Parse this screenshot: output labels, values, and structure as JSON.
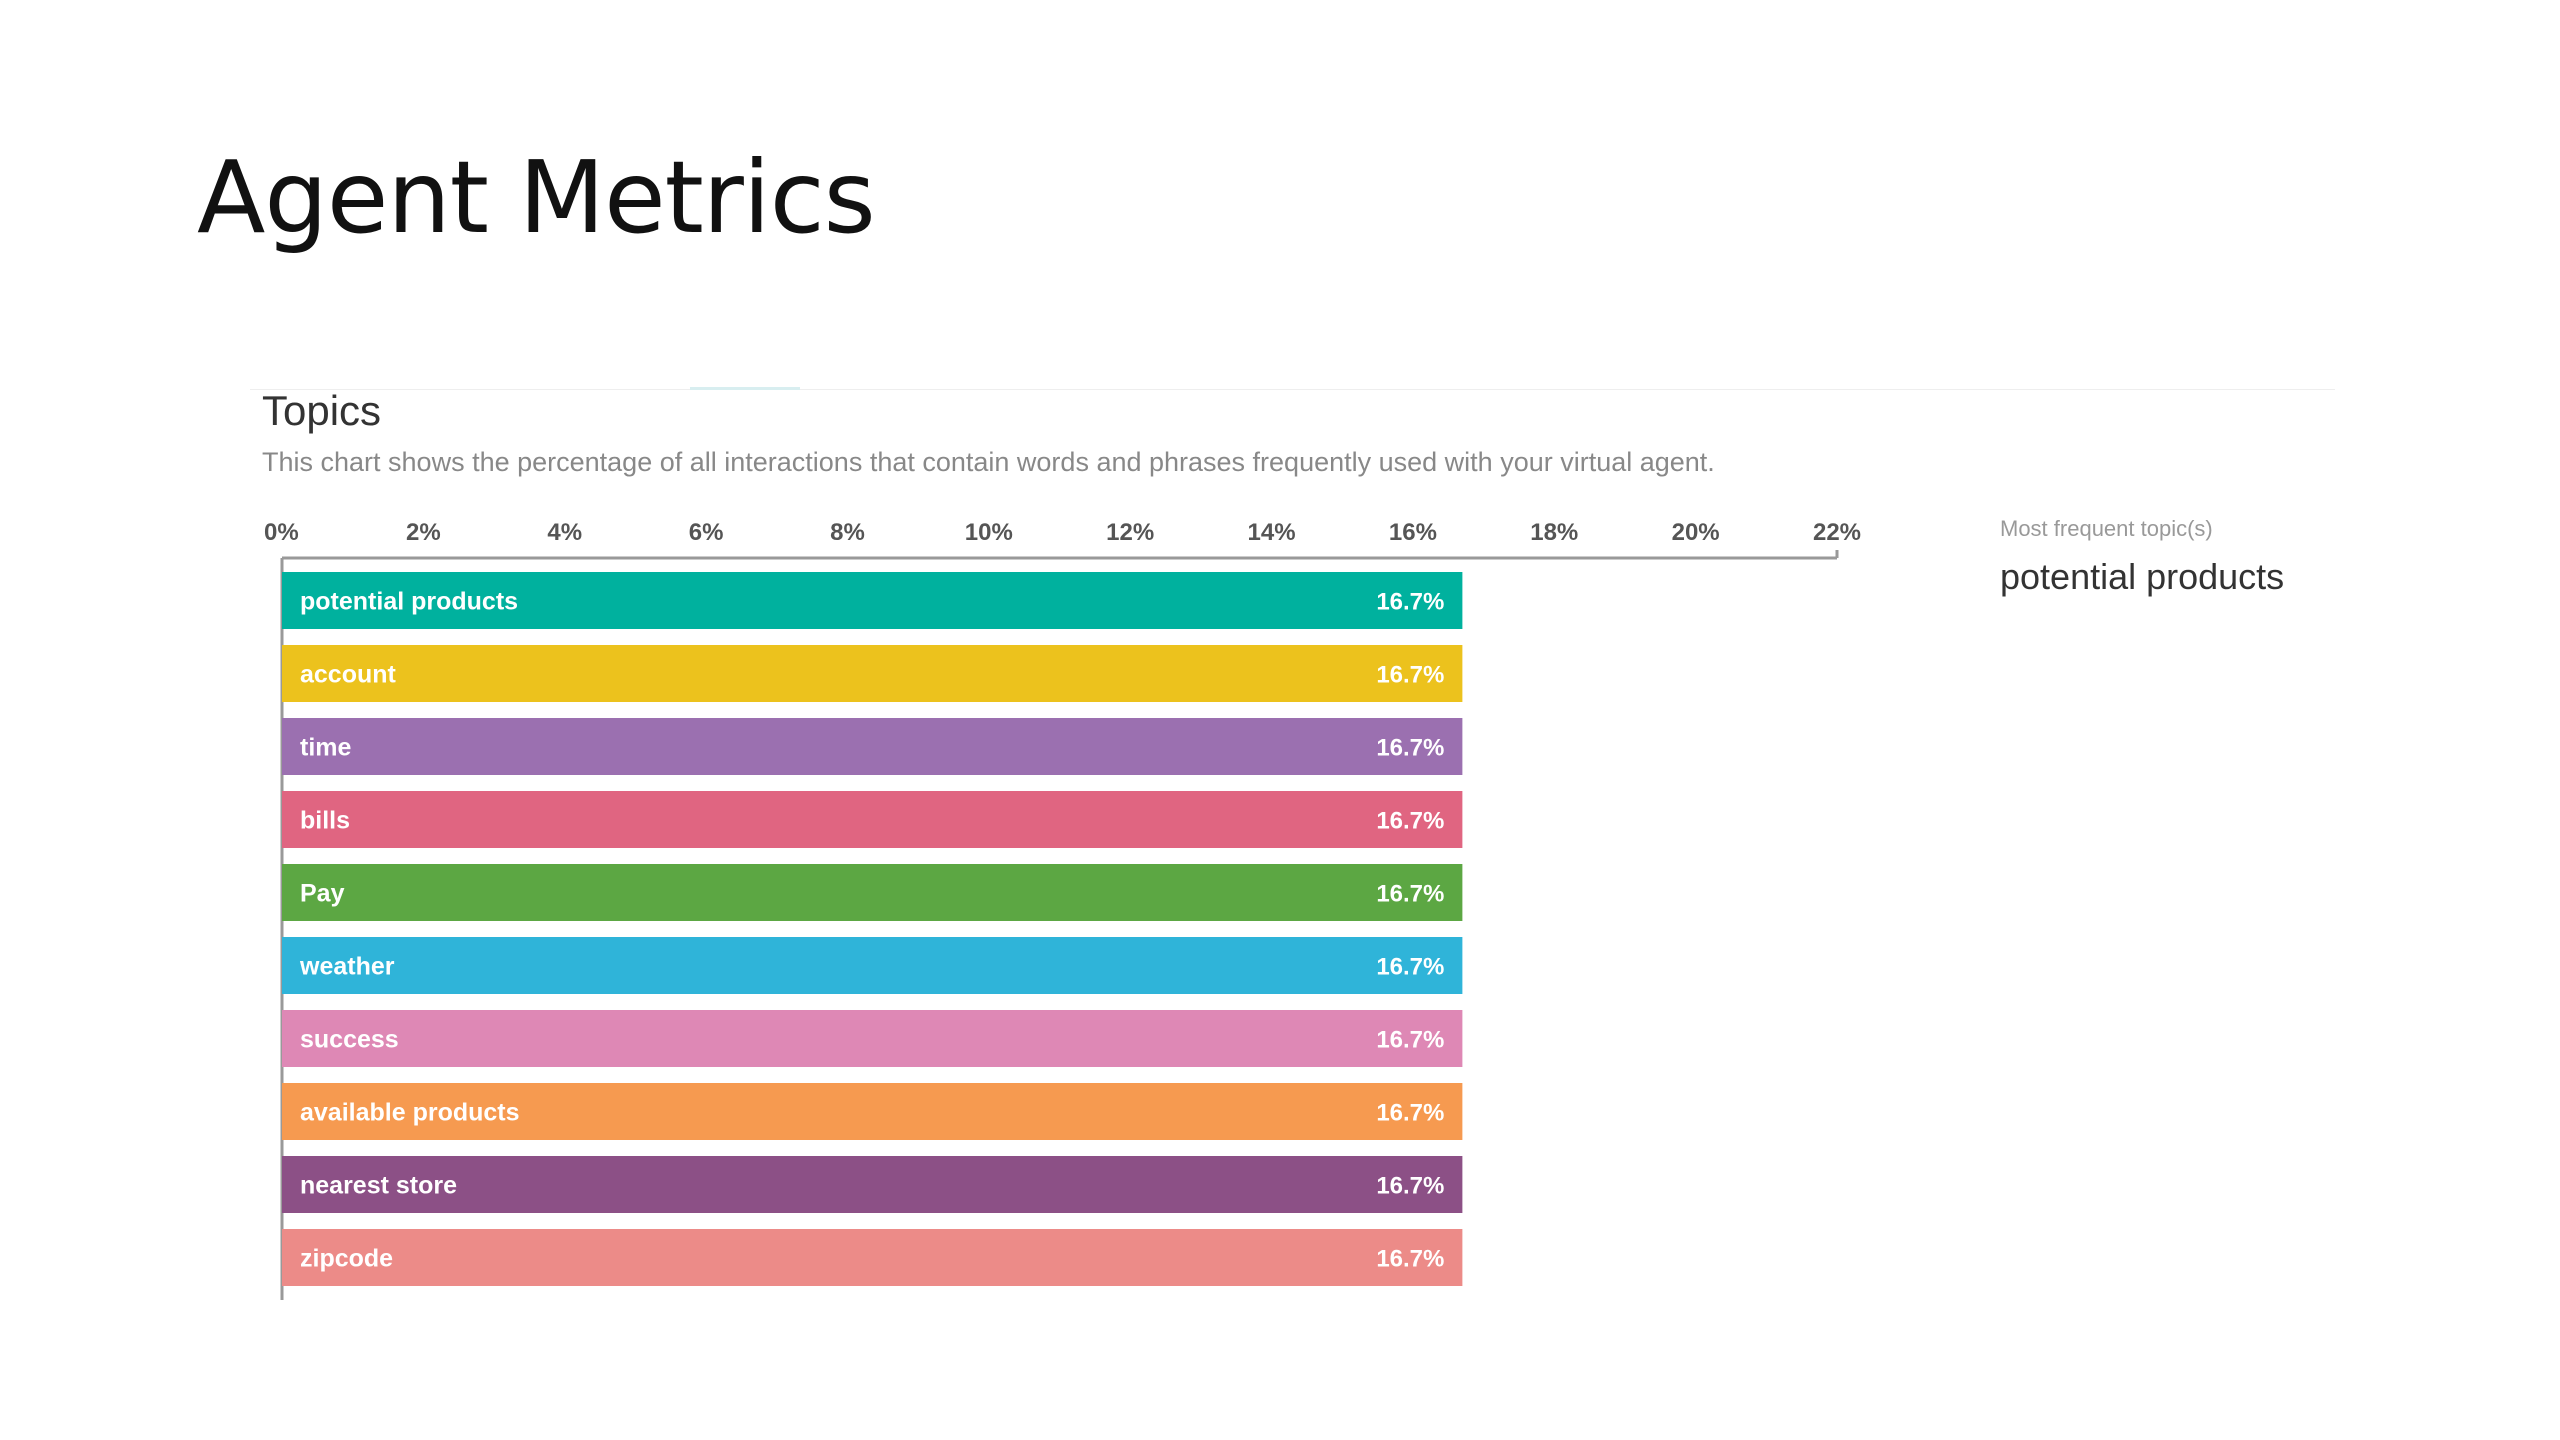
{
  "slide": {
    "title": "Agent Metrics"
  },
  "panel": {
    "heading": "Topics",
    "description": "This chart shows the percentage of all interactions that contain words and phrases frequently used with your virtual agent."
  },
  "summary": {
    "label": "Most frequent topic(s)",
    "value": "potential products"
  },
  "chart_data": {
    "type": "bar",
    "orientation": "horizontal",
    "categories": [
      "potential products",
      "account",
      "time",
      "bills",
      "Pay",
      "weather",
      "success",
      "available products",
      "nearest store",
      "zipcode"
    ],
    "values": [
      16.7,
      16.7,
      16.7,
      16.7,
      16.7,
      16.7,
      16.7,
      16.7,
      16.7,
      16.7
    ],
    "value_labels": [
      "16.7%",
      "16.7%",
      "16.7%",
      "16.7%",
      "16.7%",
      "16.7%",
      "16.7%",
      "16.7%",
      "16.7%",
      "16.7%"
    ],
    "colors": [
      "#00b19e",
      "#ecc21d",
      "#9b70b0",
      "#e06581",
      "#5ca743",
      "#2fb4d9",
      "#de88b5",
      "#f69a50",
      "#8c5086",
      "#ec8b88"
    ],
    "xlim": [
      0,
      22
    ],
    "xticks": [
      0,
      2,
      4,
      6,
      8,
      10,
      12,
      14,
      16,
      18,
      20,
      22
    ],
    "xtick_labels": [
      "0%",
      "2%",
      "4%",
      "6%",
      "8%",
      "10%",
      "12%",
      "14%",
      "16%",
      "18%",
      "20%",
      "22%"
    ],
    "axis_position": "top",
    "grid": false,
    "legend": "none"
  }
}
